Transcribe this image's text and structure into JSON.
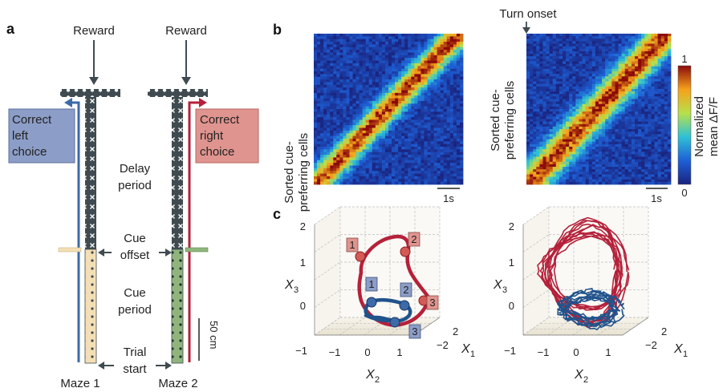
{
  "panels": {
    "a": {
      "letter": "a",
      "reward_left": "Reward",
      "reward_right": "Reward",
      "correct_left": [
        "Correct",
        "left",
        "choice"
      ],
      "correct_right": [
        "Correct",
        "right",
        "choice"
      ],
      "delay_period": [
        "Delay",
        "period"
      ],
      "cue_offset": [
        "Cue",
        "offset"
      ],
      "cue_period": [
        "Cue",
        "period"
      ],
      "trial_start": [
        "Trial",
        "start"
      ],
      "scale_bar": "50 cm",
      "maze1": "Maze 1",
      "maze2": "Maze 2",
      "colors": {
        "left": "#3d6aa8",
        "right": "#b5213a",
        "left_box": "#8c9dc7",
        "right_box": "#e0948f",
        "cue_left": "#f4dfb5",
        "cue_right": "#8fb57d",
        "maze_dark": "#3f4b50"
      }
    },
    "b": {
      "letter": "b",
      "turn_onset": "Turn onset",
      "ylabel_left": [
        "Sorted cue-",
        "preferring cells"
      ],
      "ylabel_right": [
        "Sorted cue-",
        "preferring cells"
      ],
      "scale_left": "1s",
      "scale_right": "1s",
      "colorbar_label": [
        "Normalized",
        "mean ΔF/F"
      ],
      "colorbar_max": "1",
      "colorbar_min": "0"
    },
    "c": {
      "letter": "c",
      "x3_label": "X",
      "x3_sub": "3",
      "x2_label": "X",
      "x2_sub": "2",
      "x1_label": "X",
      "x1_sub": "1",
      "z_ticks": [
        "2",
        "1",
        "0",
        "−1"
      ],
      "x2_ticks": [
        "−1",
        "0",
        "1"
      ],
      "x1_ticks": [
        "2",
        "−2"
      ],
      "red_markers": [
        "1",
        "2",
        "3"
      ],
      "blue_markers": [
        "1",
        "2",
        "3"
      ]
    }
  }
}
